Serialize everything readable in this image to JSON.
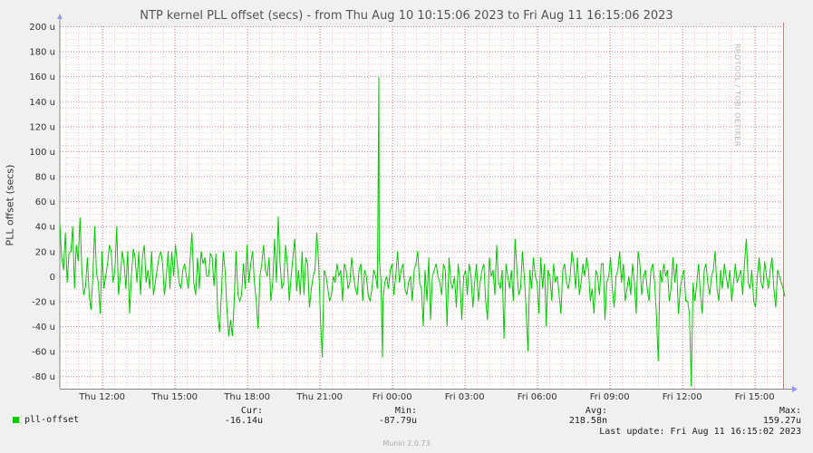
{
  "chart_data": {
    "type": "line",
    "title": "NTP kernel PLL offset (secs) - from Thu Aug 10 10:15:06 2023 to Fri Aug 11 16:15:06 2023",
    "ylabel": "PLL offset (secs)",
    "xlabel": "",
    "ylim": [
      -90,
      200
    ],
    "yticks": [
      -80,
      -60,
      -40,
      -20,
      0,
      20,
      40,
      60,
      80,
      100,
      120,
      140,
      160,
      180,
      200
    ],
    "ytick_labels": [
      "-80 u",
      "-60 u",
      "-40 u",
      "-20 u",
      "0",
      "20 u",
      "40 u",
      "60 u",
      "80 u",
      "100 u",
      "120 u",
      "140 u",
      "160 u",
      "180 u",
      "200 u"
    ],
    "xlim": [
      0,
      30
    ],
    "xticks": [
      1.75,
      4.75,
      7.75,
      10.75,
      13.75,
      16.75,
      19.75,
      22.75,
      25.75,
      28.75
    ],
    "xtick_labels": [
      "Thu 12:00",
      "Thu 15:00",
      "Thu 18:00",
      "Thu 21:00",
      "Fri 00:00",
      "Fri 03:00",
      "Fri 06:00",
      "Fri 09:00",
      "Fri 12:00",
      "Fri 15:00"
    ],
    "grid": true,
    "series": [
      {
        "name": "pll-offset",
        "color": "#00cc00",
        "values": [
          42,
          15,
          5,
          35,
          -5,
          18,
          20,
          40,
          -10,
          25,
          12,
          47,
          5,
          -15,
          -8,
          15,
          -15,
          -27,
          0,
          40,
          2,
          -5,
          -30,
          20,
          -10,
          0,
          10,
          25,
          20,
          -5,
          5,
          40,
          -15,
          0,
          20,
          10,
          -10,
          20,
          -30,
          0,
          22,
          15,
          -5,
          20,
          -15,
          15,
          25,
          -5,
          5,
          -10,
          20,
          -15,
          -5,
          5,
          15,
          20,
          10,
          -15,
          0,
          20,
          -10,
          20,
          0,
          25,
          10,
          -5,
          -10,
          5,
          10,
          0,
          -10,
          15,
          35,
          -5,
          -15,
          15,
          -10,
          20,
          10,
          15,
          0,
          0,
          18,
          15,
          -8,
          18,
          -30,
          -45,
          -15,
          20,
          5,
          -25,
          -48,
          -35,
          -48,
          -20,
          20,
          -15,
          -20,
          -15,
          10,
          -10,
          25,
          -5,
          10,
          20,
          -5,
          -20,
          -42,
          0,
          10,
          25,
          5,
          0,
          15,
          -20,
          -5,
          30,
          -5,
          48,
          10,
          -10,
          -5,
          25,
          10,
          -20,
          0,
          15,
          30,
          -12,
          5,
          -15,
          20,
          -15,
          15,
          10,
          -25,
          -10,
          0,
          5,
          35,
          10,
          -35,
          -65,
          5,
          0,
          -10,
          -20,
          -15,
          0,
          -5,
          10,
          0,
          5,
          -20,
          10,
          5,
          -10,
          -5,
          15,
          0,
          -10,
          -15,
          5,
          10,
          -20,
          5,
          0,
          -15,
          -20,
          -10,
          5,
          0,
          -10,
          15,
          -5,
          -20,
          -5,
          0,
          -10,
          5,
          10,
          -15,
          0,
          20,
          -5,
          5,
          10,
          -10,
          -15,
          -5,
          0,
          -20,
          5,
          10,
          20,
          -5,
          -10,
          -40,
          5,
          -20,
          15,
          -35,
          0,
          5,
          10,
          0,
          -5,
          -15,
          10,
          5,
          -40,
          15,
          -5,
          -10,
          0,
          -25,
          10,
          -5,
          -35,
          0,
          5,
          -15,
          10,
          0,
          -25,
          -5,
          10,
          -20,
          -5,
          5,
          10,
          -20,
          -35,
          15,
          0,
          5,
          -15,
          25,
          -5,
          -10,
          5,
          -50,
          10,
          0,
          -10,
          5,
          -20,
          30,
          5,
          -15,
          -10,
          20,
          0,
          -25,
          -60,
          5,
          -10,
          15,
          0,
          -5,
          -30,
          15,
          -10,
          10,
          -40,
          5,
          0,
          -20,
          10,
          -5,
          0,
          -15,
          -30,
          5,
          10,
          -5,
          -10,
          0,
          20,
          10,
          -10,
          15,
          -15,
          -5,
          10,
          0,
          15,
          5,
          -20,
          -10,
          -30,
          5,
          0,
          -15,
          10,
          10,
          -35,
          -5,
          0,
          15,
          -10,
          -25,
          0,
          5,
          20,
          -5,
          10,
          -20,
          -10,
          0,
          -15,
          10,
          -5,
          -30,
          20,
          10,
          -15,
          0,
          5,
          -10,
          -20,
          5,
          10,
          -5,
          -30,
          -68,
          5,
          -5,
          10,
          0,
          5,
          -20,
          -10,
          15,
          -5,
          10,
          -30,
          -10,
          0,
          5,
          -20,
          -20,
          -30,
          -88,
          -5,
          -20,
          -5,
          10,
          -15,
          -30,
          5,
          10,
          -5,
          -15,
          0,
          5,
          20,
          -10,
          -20,
          5,
          -10,
          10,
          0,
          -10,
          5,
          -20,
          -5,
          10,
          -5,
          0,
          5,
          -15,
          10,
          30,
          -5,
          -10,
          5,
          -20,
          -25,
          0,
          15,
          -5,
          -10,
          12,
          0,
          -10,
          5,
          15,
          -10,
          -25,
          5,
          0,
          -5,
          -10,
          -16.14
        ],
        "cur": "-16.14u",
        "min": "-87.79u",
        "avg": "218.58n",
        "max": "159.27u"
      }
    ],
    "spikes": [
      {
        "x": 13.2,
        "y": 159.27
      },
      {
        "x": 13.35,
        "y": -65
      }
    ],
    "legend_placement": "bottom-left",
    "stats_headers": [
      "Cur:",
      "Min:",
      "Avg:",
      "Max:"
    ],
    "last_update": "Last update:  Fri Aug 11 16:15:02 2023",
    "watermark": "RRDTOOL / TOBI OETIKER",
    "footer": "Munin 2.0.73"
  }
}
